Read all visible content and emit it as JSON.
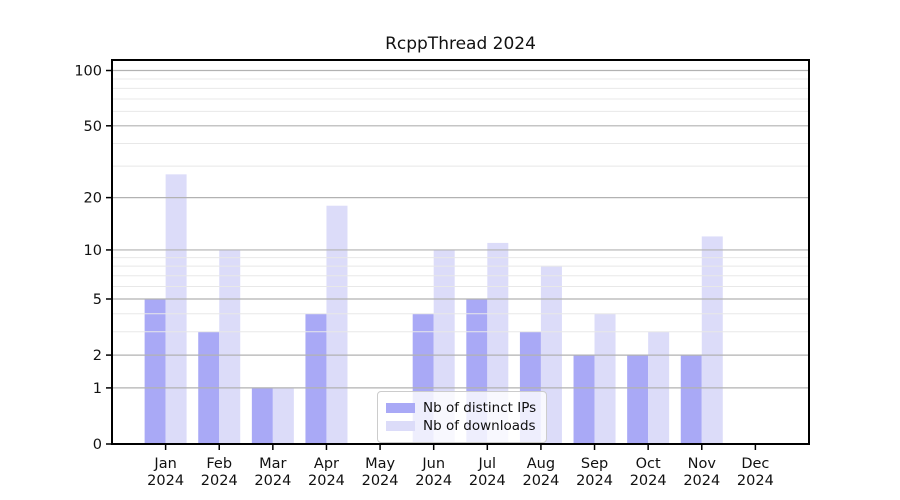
{
  "title": "RcppThread 2024",
  "legend": {
    "items": [
      {
        "label": "Nb of distinct IPs",
        "color": "#a9a9f6"
      },
      {
        "label": "Nb of downloads",
        "color": "#dcdcf9"
      }
    ]
  },
  "chart_data": {
    "type": "bar",
    "title": "RcppThread 2024",
    "categories": [
      "Jan 2024",
      "Feb 2024",
      "Mar 2024",
      "Apr 2024",
      "May 2024",
      "Jun 2024",
      "Jul 2024",
      "Aug 2024",
      "Sep 2024",
      "Oct 2024",
      "Nov 2024",
      "Dec 2024"
    ],
    "series": [
      {
        "name": "Nb of distinct IPs",
        "color": "#a9a9f6",
        "values": [
          5,
          3,
          1,
          4,
          0,
          4,
          5,
          3,
          2,
          2,
          2,
          0
        ]
      },
      {
        "name": "Nb of downloads",
        "color": "#dcdcf9",
        "values": [
          27,
          10,
          1,
          18,
          0,
          10,
          11,
          8,
          4,
          3,
          12,
          0
        ]
      }
    ],
    "xlabel": "",
    "ylabel": "",
    "yscale": "log1p",
    "ylim": [
      0,
      114
    ],
    "yticks": [
      0,
      1,
      2,
      5,
      10,
      20,
      50,
      100
    ],
    "yticks_minor": [
      3,
      4,
      6,
      7,
      8,
      9,
      30,
      40,
      60,
      70,
      80,
      90
    ],
    "grid": true,
    "legend_position": "lower center"
  },
  "colors": {
    "major_grid": "#b2b2b2",
    "minor_grid": "#e8e8e8",
    "spine": "#000000",
    "tick_label": "#111111",
    "background": "#ffffff"
  }
}
